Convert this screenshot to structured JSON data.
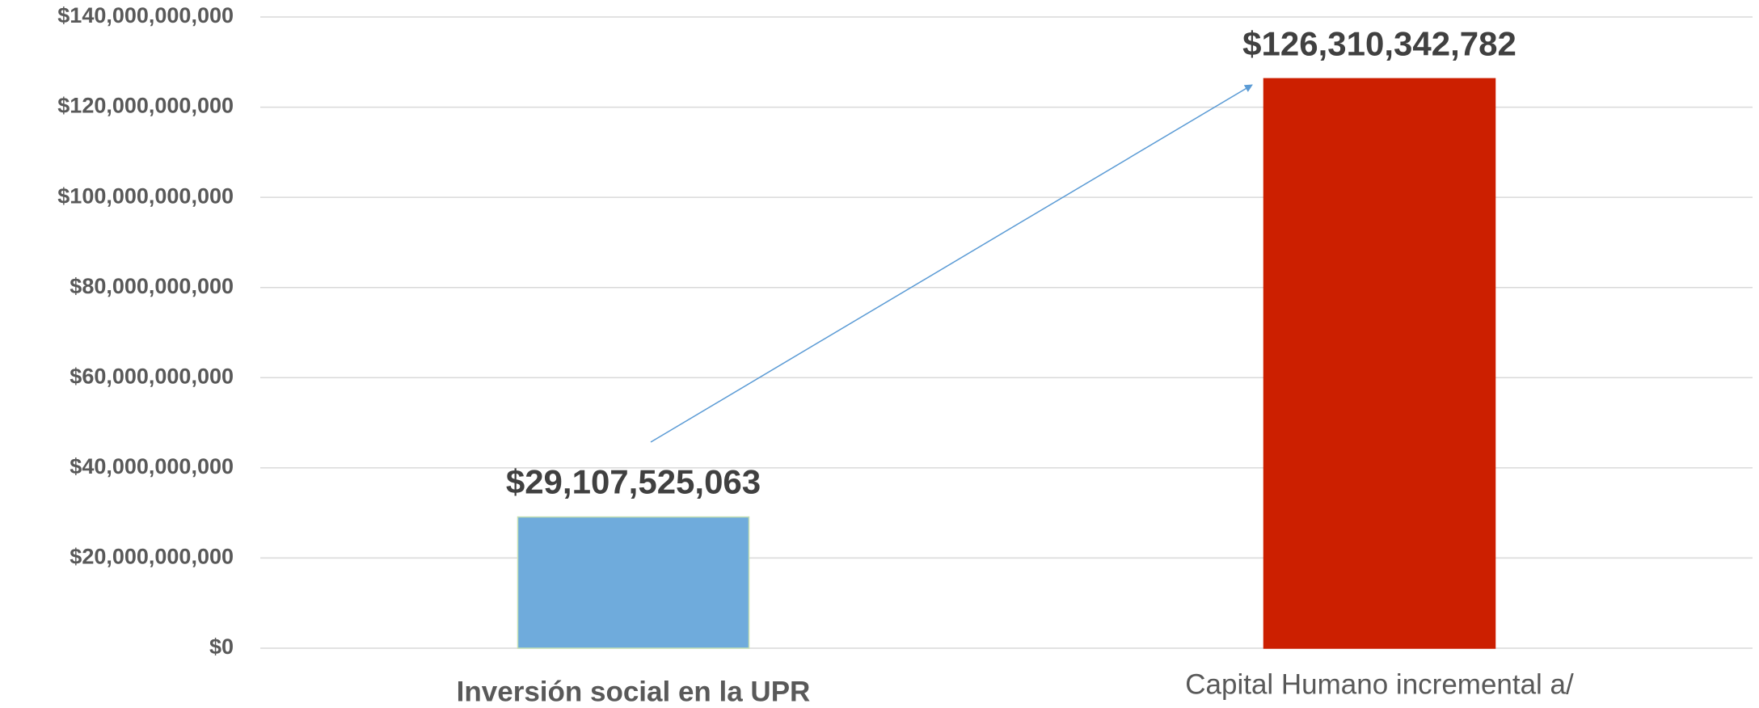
{
  "chart_data": {
    "type": "bar",
    "categories": [
      "Inversión social en la UPR",
      "Capital Humano incremental a/"
    ],
    "values": [
      29107525063,
      126310342782
    ],
    "value_labels": [
      "$29,107,525,063",
      "$126,310,342,782"
    ],
    "colors": [
      "#6fabdc",
      "#cc1f00"
    ],
    "ylim": [
      0,
      140000000000
    ],
    "yticks": [
      {
        "value": 0,
        "label": "$0"
      },
      {
        "value": 20000000000,
        "label": "$20,000,000,000"
      },
      {
        "value": 40000000000,
        "label": "$40,000,000,000"
      },
      {
        "value": 60000000000,
        "label": "$60,000,000,000"
      },
      {
        "value": 80000000000,
        "label": "$80,000,000,000"
      },
      {
        "value": 100000000000,
        "label": "$100,000,000,000"
      },
      {
        "value": 120000000000,
        "label": "$120,000,000,000"
      },
      {
        "value": 140000000000,
        "label": "$140,000,000,000"
      }
    ],
    "grid": true
  }
}
